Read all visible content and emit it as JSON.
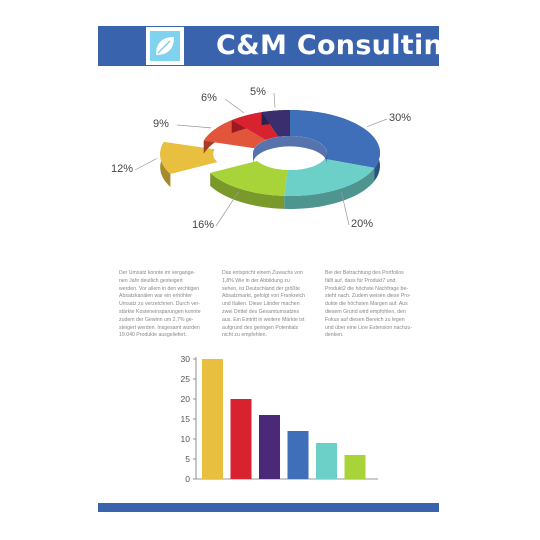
{
  "header": {
    "brand": "C&M Consulting"
  },
  "colors": {
    "brand_blue": "#3a63ae",
    "logo_light": "#7fd3ee",
    "yellow": "#e8bf3e",
    "red": "#d8222f",
    "purple": "#4a2a78",
    "blue": "#3e6fb8",
    "teal": "#6ccfc8",
    "green": "#a8d43a",
    "orange": "#e2553a",
    "navy": "#3a2e6e"
  },
  "columns": [
    "Der Umsatz konnte im vergange-\nnen Jahr deutlich gesteigert\nwerden. Vor allem in den wichtigen\nAbsatzkanälen war ein erhöhter\nUmsatz zu verzeichnen. Durch ver-\nstärkte Kosteneinsparungen konnte\nzudem der Gewinn um 2,7% ge-\nsteigert werden. Insgesamt wurden\n19.040 Produkte ausgeliefert.",
    "Das entspricht einem Zuwachs von\n1,8% Wie in der Abbildung zu\nsehen, ist Deutschland der größte\nAbsatzmarkt, gefolgt von Frankreich\nund Italien. Diese Länder machen\nzwei Drittel des Gesamtumsatzes\naus. Ein Eintritt in weitere Märkte ist\naufgrund des geringen Potentials\nnicht zu empfehlen.",
    "Bei der Betrachtung des Portfolios\nfällt auf, dass für Produkt7 und\nProdukt2 die höchste Nachfrage be-\nsteht nach. Zudem weisen diese Pro-\ndukte die höchsten Margen auf. Aus\ndiesem Grund wird empfohlen, den\nFokus auf diesen Bereich zu legen\nund über eine Line Extension nachzu-\ndenken."
  ],
  "chart_data": [
    {
      "type": "pie",
      "style": "3d-donut",
      "slices": [
        {
          "label": "30%",
          "value": 30,
          "color": "#3e6fb8"
        },
        {
          "label": "20%",
          "value": 20,
          "color": "#6ccfc8"
        },
        {
          "label": "16%",
          "value": 16,
          "color": "#a8d43a"
        },
        {
          "label": "12%",
          "value": 12,
          "color": "#e8bf3e",
          "exploded": true
        },
        {
          "label": "9%",
          "value": 9,
          "color": "#e2553a"
        },
        {
          "label": "6%",
          "value": 6,
          "color": "#d8222f"
        },
        {
          "label": "5%",
          "value": 5,
          "color": "#3a2e6e"
        }
      ]
    },
    {
      "type": "bar",
      "values": [
        30,
        20,
        16,
        12,
        9,
        6
      ],
      "colors": [
        "#e8bf3e",
        "#d8222f",
        "#4a2a78",
        "#3e6fb8",
        "#6ccfc8",
        "#a8d43a"
      ],
      "ylim": [
        0,
        30
      ],
      "yticks": [
        "0",
        "5",
        "10",
        "15",
        "20",
        "25",
        "30"
      ],
      "grid": false
    }
  ]
}
